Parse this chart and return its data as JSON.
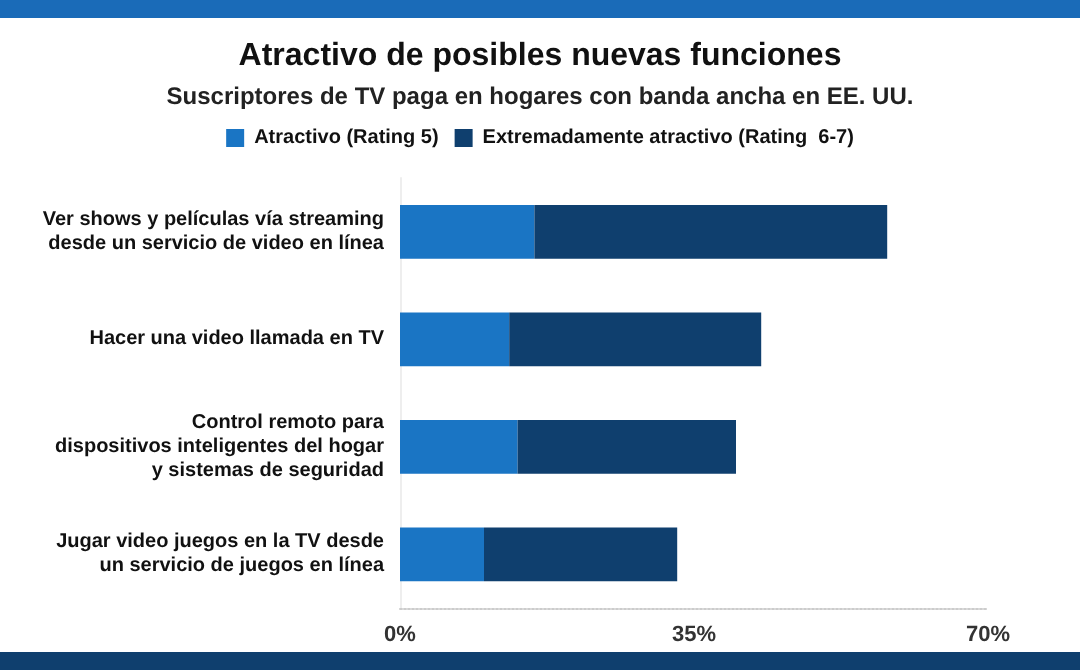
{
  "chart_data": {
    "type": "bar",
    "orientation": "horizontal",
    "stacked": true,
    "title": "Atractivo de posibles nuevas funciones",
    "subtitle": "Suscriptores de TV paga en hogares con banda ancha en EE. UU.",
    "categories": [
      "Ver shows y películas vía streaming\ndesde un servicio de video en línea",
      "Hacer una video llamada en TV",
      "Control remoto para\ndispositivos inteligentes del hogar\ny sistemas de seguridad",
      "Jugar video juegos en la TV desde\nun servicio de juegos en línea"
    ],
    "series": [
      {
        "name": "Atractivo (Rating 5)",
        "color": "#1a75c4",
        "values": [
          16,
          13,
          14,
          10
        ]
      },
      {
        "name": "Extremadamente atractivo (Rating  6-7)",
        "color": "#0f3f6e",
        "values": [
          42,
          30,
          26,
          23
        ]
      }
    ],
    "xlim": [
      0,
      70
    ],
    "xticks": [
      {
        "value": 0,
        "label": "0%"
      },
      {
        "value": 35,
        "label": "35%"
      },
      {
        "value": 70,
        "label": "70%"
      }
    ],
    "grid": false,
    "legend": "top"
  }
}
